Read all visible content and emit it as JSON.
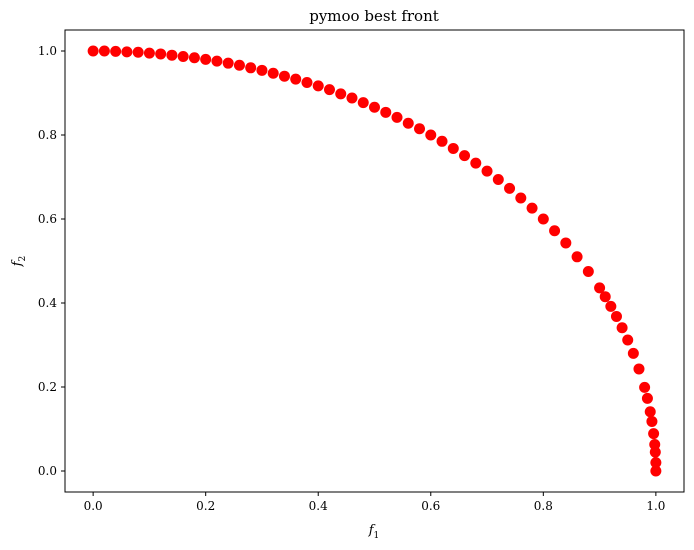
{
  "chart_data": {
    "type": "scatter",
    "title": "pymoo best front",
    "xlabel": {
      "base": "f",
      "sub": "1"
    },
    "ylabel": {
      "base": "f",
      "sub": "2"
    },
    "xlim": [
      -0.05,
      1.05
    ],
    "ylim": [
      -0.05,
      1.05
    ],
    "xticks": [
      "0.0",
      "0.2",
      "0.4",
      "0.6",
      "0.8",
      "1.0"
    ],
    "yticks": [
      "0.0",
      "0.2",
      "0.4",
      "0.6",
      "0.8",
      "1.0"
    ],
    "grid": false,
    "marker_color": "#ff0000",
    "series": [
      {
        "points": [
          [
            0.0,
            1.0
          ],
          [
            0.02,
            1.0
          ],
          [
            0.04,
            0.999
          ],
          [
            0.06,
            0.998
          ],
          [
            0.08,
            0.997
          ],
          [
            0.1,
            0.995
          ],
          [
            0.12,
            0.993
          ],
          [
            0.14,
            0.99
          ],
          [
            0.16,
            0.987
          ],
          [
            0.18,
            0.984
          ],
          [
            0.2,
            0.98
          ],
          [
            0.22,
            0.976
          ],
          [
            0.24,
            0.971
          ],
          [
            0.26,
            0.966
          ],
          [
            0.28,
            0.96
          ],
          [
            0.3,
            0.954
          ],
          [
            0.32,
            0.947
          ],
          [
            0.34,
            0.94
          ],
          [
            0.36,
            0.933
          ],
          [
            0.38,
            0.925
          ],
          [
            0.4,
            0.917
          ],
          [
            0.42,
            0.908
          ],
          [
            0.44,
            0.898
          ],
          [
            0.46,
            0.888
          ],
          [
            0.48,
            0.877
          ],
          [
            0.5,
            0.866
          ],
          [
            0.52,
            0.854
          ],
          [
            0.54,
            0.842
          ],
          [
            0.56,
            0.828
          ],
          [
            0.58,
            0.815
          ],
          [
            0.6,
            0.8
          ],
          [
            0.62,
            0.785
          ],
          [
            0.64,
            0.768
          ],
          [
            0.66,
            0.751
          ],
          [
            0.68,
            0.733
          ],
          [
            0.7,
            0.714
          ],
          [
            0.72,
            0.694
          ],
          [
            0.74,
            0.673
          ],
          [
            0.76,
            0.65
          ],
          [
            0.78,
            0.626
          ],
          [
            0.8,
            0.6
          ],
          [
            0.82,
            0.572
          ],
          [
            0.84,
            0.543
          ],
          [
            0.86,
            0.51
          ],
          [
            0.88,
            0.475
          ],
          [
            0.9,
            0.436
          ],
          [
            0.91,
            0.415
          ],
          [
            0.92,
            0.392
          ],
          [
            0.93,
            0.368
          ],
          [
            0.94,
            0.341
          ],
          [
            0.95,
            0.312
          ],
          [
            0.96,
            0.28
          ],
          [
            0.97,
            0.243
          ],
          [
            0.98,
            0.199
          ],
          [
            0.985,
            0.173
          ],
          [
            0.99,
            0.141
          ],
          [
            0.993,
            0.118
          ],
          [
            0.996,
            0.089
          ],
          [
            0.998,
            0.063
          ],
          [
            0.999,
            0.045
          ],
          [
            1.0,
            0.02
          ],
          [
            1.0,
            0.0
          ]
        ]
      }
    ]
  }
}
